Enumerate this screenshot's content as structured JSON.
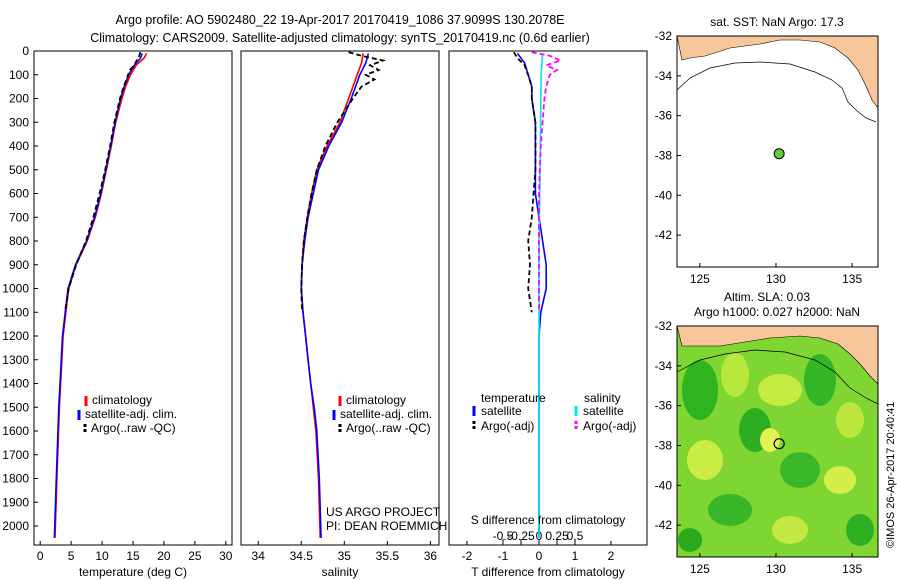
{
  "header": {
    "line1": "Argo profile: AO 5902480_22 19-Apr-2017 20170419_1086 37.9099S 130.2078E",
    "line2": "Climatology: CARS2009. Satellite-adjusted climatology: synTS_20170419.nc (0.6d earlier)"
  },
  "colors": {
    "climatology": "#ff0000",
    "satellite": "#0000ff",
    "argo": "#000000",
    "salinity_satellite": "#00e5ee",
    "salinity_argo": "#ff00ff",
    "land": "#f7c79b",
    "point_fill": "#66cc33"
  },
  "depth_axis": {
    "ticks": [
      "0",
      "100",
      "200",
      "300",
      "400",
      "500",
      "600",
      "700",
      "800",
      "900",
      "1000",
      "1100",
      "1200",
      "1300",
      "1400",
      "1500",
      "1600",
      "1700",
      "1800",
      "1900",
      "2000"
    ]
  },
  "legend_main": {
    "climatology": "climatology",
    "satellite": "satellite-adj. clim.",
    "argo": "Argo(..raw -QC)"
  },
  "project_text": {
    "line1": "US ARGO PROJECT",
    "line2": "PI: DEAN ROEMMICH"
  },
  "diff_legend": {
    "temperature_heading": "temperature",
    "salinity_heading": "salinity",
    "satellite": "satellite",
    "argo_adj": "Argo(-adj)"
  },
  "credit": "©IMOS 26-Apr-2017 20:40:41",
  "chart_data": [
    {
      "type": "line",
      "name": "temperature profile",
      "xlabel": "temperature (deg C)",
      "ylabel": "depth",
      "xlim": [
        -1,
        31
      ],
      "ylim": [
        2080,
        0
      ],
      "xticks": [
        "0",
        "5",
        "10",
        "15",
        "20",
        "25",
        "30"
      ],
      "series": [
        {
          "name": "climatology",
          "color": "#ff0000",
          "depth": [
            10,
            30,
            60,
            100,
            150,
            200,
            300,
            400,
            500,
            600,
            700,
            800,
            900,
            1000,
            1200,
            1500,
            1800,
            2050
          ],
          "values": [
            17.2,
            16.8,
            15.5,
            14.6,
            13.8,
            13.2,
            12.2,
            11.5,
            10.7,
            9.9,
            8.9,
            7.6,
            5.8,
            4.6,
            3.7,
            3.1,
            2.7,
            2.4
          ]
        },
        {
          "name": "satellite-adj. clim.",
          "color": "#0000ff",
          "depth": [
            10,
            30,
            60,
            100,
            150,
            200,
            300,
            400,
            500,
            600,
            700,
            800,
            900,
            1000,
            1200,
            1500,
            1800,
            2050
          ],
          "values": [
            16.5,
            16.2,
            15.2,
            14.3,
            13.6,
            13.0,
            12.1,
            11.4,
            10.6,
            9.8,
            8.8,
            7.5,
            5.7,
            4.5,
            3.6,
            3.0,
            2.6,
            2.3
          ]
        },
        {
          "name": "Argo(..raw -QC)",
          "color": "#000000",
          "depth": [
            5,
            20,
            40,
            60,
            80,
            100,
            150,
            200,
            300,
            400,
            500,
            600,
            700,
            800,
            900,
            1000,
            1100
          ],
          "values": [
            16.2,
            16.0,
            15.6,
            15.2,
            14.5,
            14.2,
            13.5,
            12.9,
            12.0,
            11.3,
            10.5,
            9.6,
            8.6,
            7.4,
            5.8,
            4.6,
            4.0
          ]
        }
      ]
    },
    {
      "type": "line",
      "name": "salinity profile",
      "xlabel": "salinity",
      "ylabel": "depth",
      "xlim": [
        33.8,
        36.1
      ],
      "ylim": [
        2080,
        0
      ],
      "xticks": [
        "34",
        "34.5",
        "35",
        "35.5",
        "36"
      ],
      "series": [
        {
          "name": "climatology",
          "color": "#ff0000",
          "depth": [
            10,
            50,
            100,
            200,
            300,
            400,
            500,
            600,
            700,
            800,
            900,
            1000,
            1100,
            1200,
            1300,
            1400,
            1500,
            1600,
            1800,
            2050
          ],
          "values": [
            35.22,
            35.2,
            35.15,
            35.05,
            34.95,
            34.8,
            34.68,
            34.62,
            34.57,
            34.53,
            34.51,
            34.5,
            34.52,
            34.55,
            34.58,
            34.61,
            34.64,
            34.67,
            34.7,
            34.72
          ]
        },
        {
          "name": "satellite-adj. clim.",
          "color": "#0000ff",
          "depth": [
            10,
            50,
            100,
            200,
            300,
            400,
            500,
            600,
            700,
            800,
            900,
            1000,
            1100,
            1200,
            1300,
            1400,
            1500,
            1600,
            1800,
            2050
          ],
          "values": [
            35.28,
            35.25,
            35.18,
            35.08,
            34.97,
            34.82,
            34.7,
            34.64,
            34.58,
            34.54,
            34.51,
            34.5,
            34.52,
            34.55,
            34.58,
            34.61,
            34.65,
            34.68,
            34.71,
            34.73
          ]
        },
        {
          "name": "Argo(..raw -QC)",
          "color": "#000000",
          "depth": [
            5,
            20,
            40,
            60,
            80,
            100,
            120,
            150,
            200,
            300,
            400,
            500,
            600,
            700,
            800,
            900,
            1000,
            1100
          ],
          "values": [
            35.05,
            35.2,
            35.45,
            35.3,
            35.4,
            35.25,
            35.35,
            35.2,
            35.1,
            34.92,
            34.78,
            34.68,
            34.62,
            34.57,
            34.53,
            34.51,
            34.5,
            34.51
          ]
        }
      ]
    },
    {
      "type": "line",
      "name": "difference from climatology",
      "xlabel": "T difference from climatology",
      "xlabel_top": "S difference from climatology",
      "xlim": [
        -2.5,
        3.0
      ],
      "ylim": [
        2080,
        0
      ],
      "xticks_bottom": [
        "-2",
        "-1",
        "0",
        "1",
        "2"
      ],
      "xticks_top": [
        "-0.5",
        "-0.25",
        "0",
        "0.25",
        "0.5"
      ],
      "series": [
        {
          "name": "temperature satellite",
          "color": "#0000ff",
          "depth": [
            10,
            50,
            100,
            150,
            200,
            300,
            400,
            500,
            600,
            700,
            800,
            900,
            1000,
            1100,
            1200,
            1500,
            2050
          ],
          "values": [
            -0.6,
            -0.4,
            -0.3,
            -0.2,
            -0.2,
            -0.1,
            -0.1,
            -0.1,
            -0.1,
            0.0,
            0.1,
            0.2,
            0.2,
            0.05,
            0.0,
            0.0,
            0.0
          ]
        },
        {
          "name": "temperature Argo(-adj)",
          "color": "#000000",
          "depth": [
            5,
            30,
            60,
            100,
            150,
            200,
            300,
            400,
            500,
            600,
            700,
            800,
            900,
            1000,
            1100
          ],
          "values": [
            -0.7,
            -0.6,
            -0.4,
            -0.3,
            -0.2,
            -0.2,
            -0.1,
            -0.1,
            -0.1,
            -0.15,
            -0.2,
            -0.3,
            -0.25,
            -0.3,
            -0.2
          ]
        },
        {
          "name": "salinity satellite",
          "color": "#00e5ee",
          "depth": [
            10,
            50,
            100,
            200,
            400,
            600,
            800,
            1000,
            1200,
            1500,
            2050
          ],
          "values": [
            0.1,
            0.08,
            0.06,
            0.05,
            0.04,
            0.02,
            0.0,
            0.0,
            0.0,
            0.0,
            0.0
          ]
        },
        {
          "name": "salinity Argo(-adj)",
          "color": "#ff00ff",
          "depth": [
            5,
            20,
            40,
            60,
            80,
            100,
            150,
            200,
            300,
            400,
            500,
            600,
            700,
            800,
            900,
            1000,
            1100
          ],
          "values": [
            -0.2,
            0.3,
            0.6,
            0.2,
            0.5,
            0.3,
            0.2,
            0.15,
            0.1,
            0.05,
            0.02,
            0.0,
            0.0,
            0.0,
            0.0,
            0.0,
            0.0
          ]
        }
      ]
    },
    {
      "type": "scatter",
      "name": "SST map",
      "title": "sat. SST: NaN Argo: 17.3",
      "xlim": [
        123.5,
        136.7
      ],
      "ylim": [
        -43.6,
        -32
      ],
      "xticks": [
        "125",
        "130",
        "135"
      ],
      "yticks": [
        "-32",
        "-34",
        "-36",
        "-38",
        "-40",
        "-42"
      ],
      "points": [
        {
          "lon": 130.2078,
          "lat": -37.9099
        }
      ]
    },
    {
      "type": "scatter",
      "name": "SLA map",
      "title1": "Altim. SLA: 0.03",
      "title2": "Argo h1000: 0.027 h2000: NaN",
      "xlim": [
        123.5,
        136.7
      ],
      "ylim": [
        -43.6,
        -32
      ],
      "xticks": [
        "125",
        "130",
        "135"
      ],
      "yticks": [
        "-32",
        "-34",
        "-36",
        "-38",
        "-40",
        "-42"
      ],
      "points": [
        {
          "lon": 130.2078,
          "lat": -37.9099
        }
      ]
    }
  ]
}
